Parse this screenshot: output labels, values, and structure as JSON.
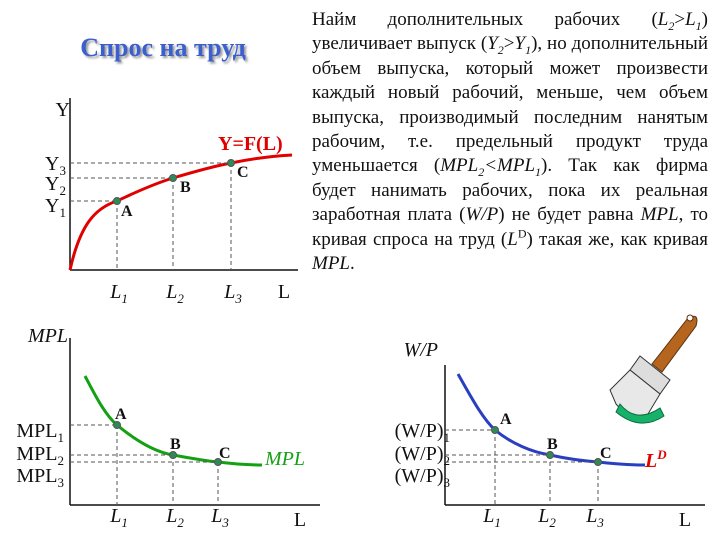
{
  "title": "Спрос на труд",
  "paragraph": [
    {
      "text": "Найм дополнительных рабочих ("
    },
    {
      "text": "L",
      "italic": true
    },
    {
      "text": "2",
      "italic": true,
      "sub": true
    },
    {
      "text": ">"
    },
    {
      "text": "L",
      "italic": true
    },
    {
      "text": "1",
      "italic": true,
      "sub": true
    },
    {
      "text": ") увеличивает выпуск ("
    },
    {
      "text": "Y",
      "italic": true
    },
    {
      "text": "2",
      "italic": true,
      "sub": true
    },
    {
      "text": ">"
    },
    {
      "text": "Y",
      "italic": true
    },
    {
      "text": "1",
      "italic": true,
      "sub": true
    },
    {
      "text": "), но дополнительный объем выпуска, который может произвести каждый новый рабочий, меньше, чем объем выпуска, производимый последним нанятым рабочим, т.е. предельный продукт труда уменьшается ("
    },
    {
      "text": "MPL",
      "italic": true
    },
    {
      "text": "2",
      "italic": true,
      "sub": true
    },
    {
      "text": "<MPL",
      "italic": true
    },
    {
      "text": "1",
      "italic": true,
      "sub": true
    },
    {
      "text": "). Так как фирма будет нанимать рабочих, пока их реальная заработная плата ("
    },
    {
      "text": "W/P",
      "italic": true
    },
    {
      "text": ") не будет равна "
    },
    {
      "text": "MPL",
      "italic": true
    },
    {
      "text": ", то кривая спроса на труд ("
    },
    {
      "text": "L",
      "italic": true
    },
    {
      "text": "D",
      "sup": true
    },
    {
      "text": ") такая же, как кривая "
    },
    {
      "text": "MPL",
      "italic": true
    },
    {
      "text": "."
    }
  ],
  "production_graph": {
    "y_axis": "Y",
    "x_axis": "L",
    "curve": "Y=F(L)",
    "y_labels": [
      {
        "base": "Y",
        "sub": "3"
      },
      {
        "base": "Y",
        "sub": "2"
      },
      {
        "base": "Y",
        "sub": "1"
      }
    ],
    "x_labels": [
      {
        "base": "L",
        "sub": "1"
      },
      {
        "base": "L",
        "sub": "2"
      },
      {
        "base": "L",
        "sub": "3"
      }
    ],
    "points": [
      "A",
      "B",
      "C"
    ]
  },
  "mpl_graph": {
    "y_axis": "MPL",
    "x_axis": "L",
    "curve": "MPL",
    "y_labels": [
      {
        "base": "MPL",
        "sub": "1"
      },
      {
        "base": "MPL",
        "sub": "2"
      },
      {
        "base": "MPL",
        "sub": "3"
      }
    ],
    "x_labels": [
      {
        "base": "L",
        "sub": "1"
      },
      {
        "base": "L",
        "sub": "2"
      },
      {
        "base": "L",
        "sub": "3"
      }
    ],
    "points": [
      "A",
      "B",
      "C"
    ]
  },
  "demand_graph": {
    "y_axis": "W/P",
    "x_axis": "L",
    "curve": {
      "base": "L",
      "sup": "D"
    },
    "y_labels": [
      {
        "base": "(W/P)",
        "sub": "1"
      },
      {
        "base": "(W/P)",
        "sub": "2"
      },
      {
        "base": "(W/P)",
        "sub": "3"
      }
    ],
    "x_labels": [
      {
        "base": "L",
        "sub": "1"
      },
      {
        "base": "L",
        "sub": "2"
      },
      {
        "base": "L",
        "sub": "3"
      }
    ],
    "points": [
      "A",
      "B",
      "C"
    ]
  }
}
